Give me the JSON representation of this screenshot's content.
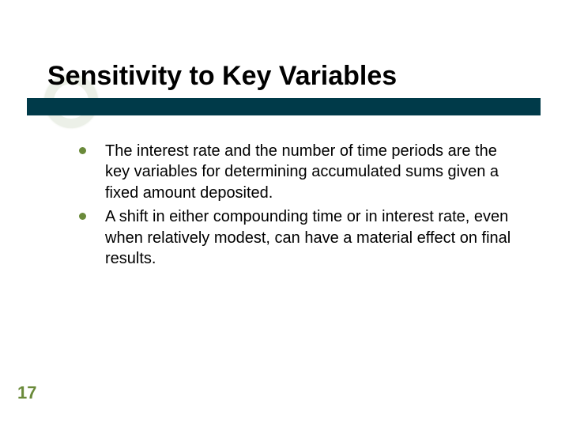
{
  "slide": {
    "title": "Sensitivity to Key Variables",
    "title_color": "#000000",
    "title_fontsize": 34,
    "title_fontweight": "bold",
    "underline_color": "#003a49",
    "bullet_color": "#6a8a3a",
    "body_fontsize": 20,
    "body_color": "#000000",
    "background_color": "#ffffff",
    "bullets": [
      "The interest rate and the number of time periods are the key variables for determining accumulated sums given a fixed amount deposited.",
      "A shift in either compounding time or in interest rate, even when relatively modest, can have a material effect on final results."
    ]
  },
  "page_number": "17",
  "page_number_color": "#6a8a3a",
  "page_number_fontsize": 22
}
